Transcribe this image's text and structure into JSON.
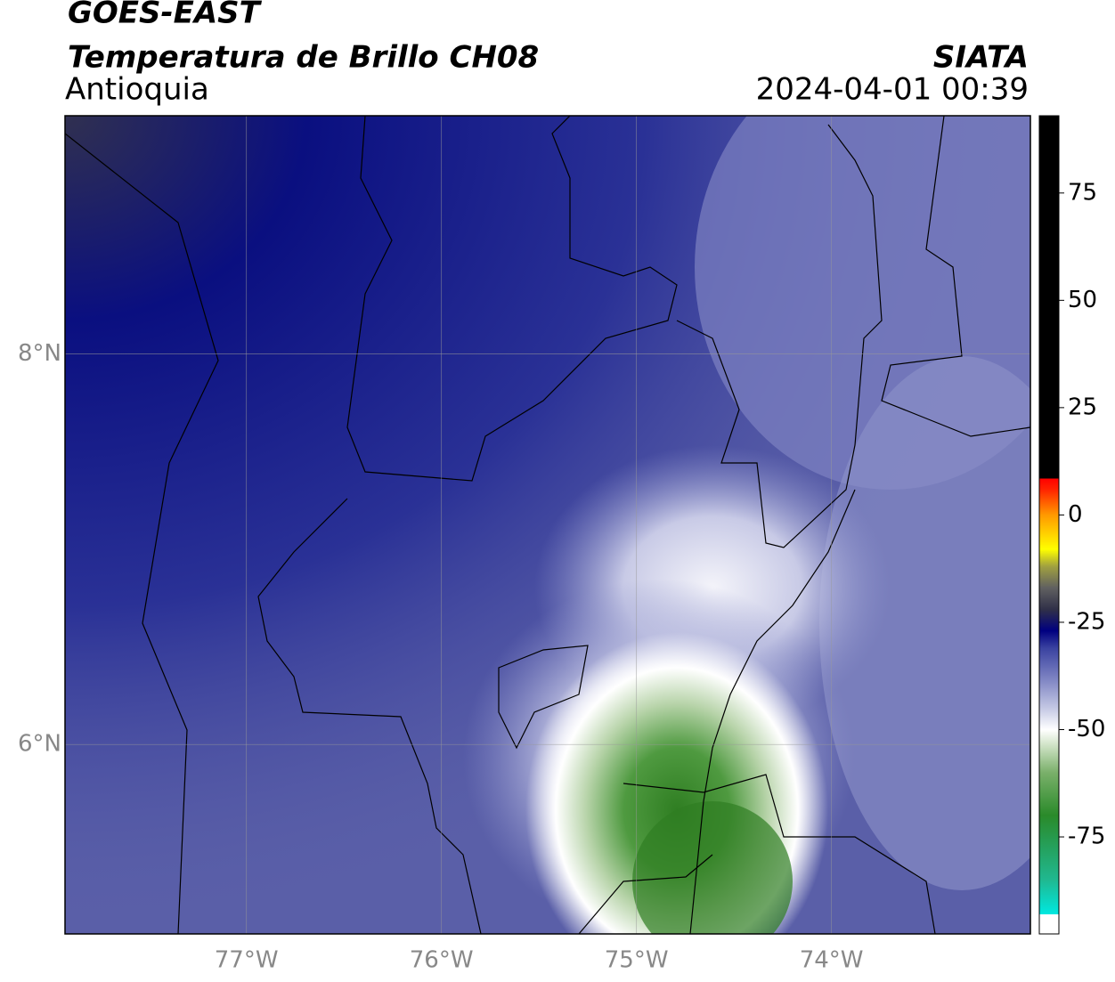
{
  "header": {
    "title": "GOES-EAST",
    "subtitle": "Temperatura de Brillo CH08",
    "region": "Antioquia",
    "source": "SIATA",
    "datetime": "2024-04-01 00:39"
  },
  "map": {
    "xlim": [
      -77.93,
      -72.98
    ],
    "ylim": [
      5.03,
      9.22
    ],
    "xticks": [
      {
        "value": -77,
        "label": "77°W"
      },
      {
        "value": -76,
        "label": "76°W"
      },
      {
        "value": -75,
        "label": "75°W"
      },
      {
        "value": -74,
        "label": "74°W"
      }
    ],
    "yticks": [
      {
        "value": 6,
        "label": "6°N"
      },
      {
        "value": 8,
        "label": "8°N"
      }
    ],
    "grid": true
  },
  "colorbar": {
    "lim": [
      -97.6,
      93
    ],
    "ticks": [
      -75,
      -50,
      -25,
      0,
      25,
      50,
      75
    ],
    "stops": [
      {
        "value": -97.6,
        "color": "#ffffff"
      },
      {
        "value": -93,
        "color": "#ffffff"
      },
      {
        "value": -93,
        "color": "#00e8e0"
      },
      {
        "value": -85,
        "color": "#20b890"
      },
      {
        "value": -70,
        "color": "#2a8a2a"
      },
      {
        "value": -60,
        "color": "#7ab06a"
      },
      {
        "value": -53,
        "color": "#d8e8d0"
      },
      {
        "value": -50,
        "color": "#ffffff"
      },
      {
        "value": -45,
        "color": "#c4c8e4"
      },
      {
        "value": -38,
        "color": "#7c82c2"
      },
      {
        "value": -31,
        "color": "#3a42a0"
      },
      {
        "value": -27,
        "color": "#000080"
      },
      {
        "value": -22,
        "color": "#303048"
      },
      {
        "value": -17,
        "color": "#606060"
      },
      {
        "value": -12,
        "color": "#a0a040"
      },
      {
        "value": -8,
        "color": "#ffff00"
      },
      {
        "value": 0,
        "color": "#ff9900"
      },
      {
        "value": 6,
        "color": "#ff2200"
      },
      {
        "value": 8.5,
        "color": "#ff0000"
      },
      {
        "value": 8.5,
        "color": "#000000"
      },
      {
        "value": 93,
        "color": "#000000"
      }
    ]
  }
}
